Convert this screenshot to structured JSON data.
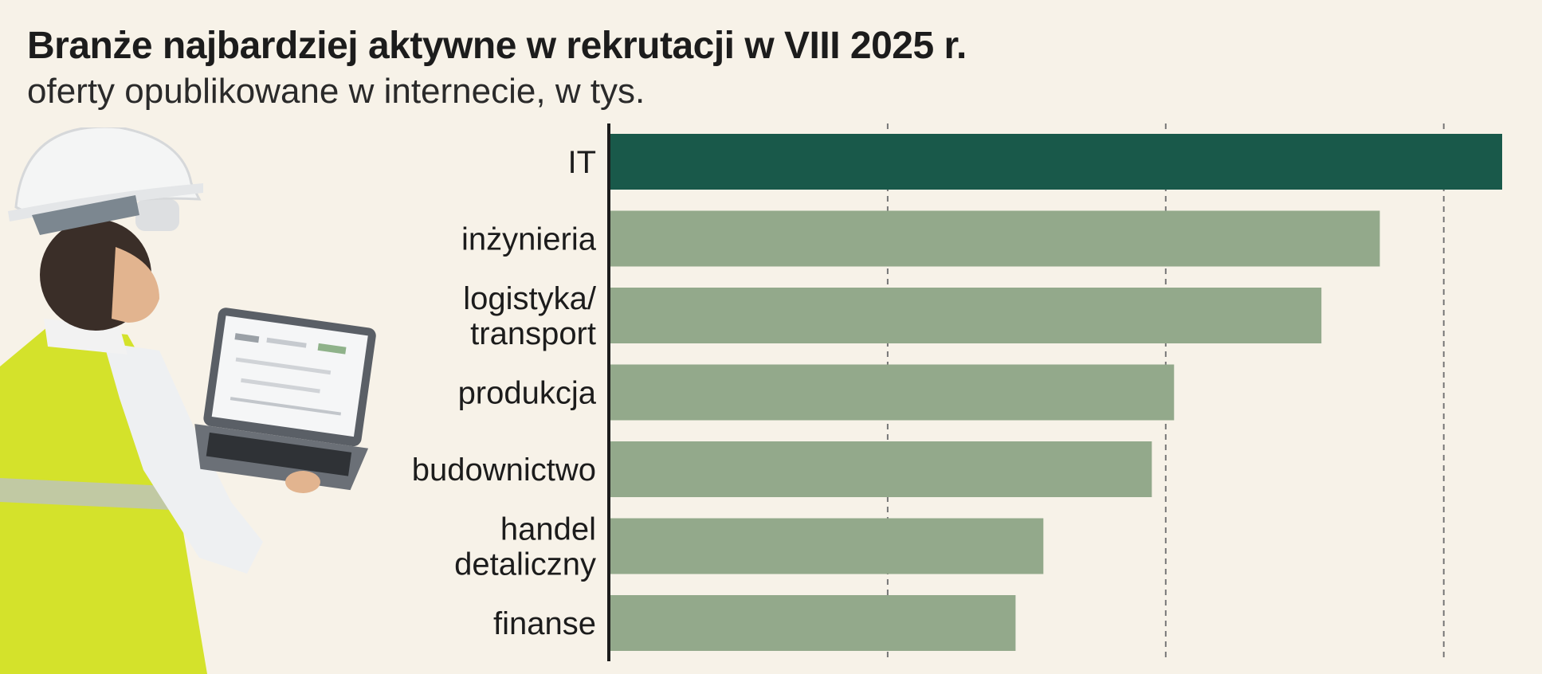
{
  "title": "Branże najbardziej aktywne w rekrutacji w VIII 2025 r.",
  "subtitle": "oferty opublikowane w internecie, w tys.",
  "colors": {
    "highlight": "#19594a",
    "bar": "#93a98b",
    "background": "#f7f2e8",
    "gridline": "#777777",
    "axis": "#1c1c1c"
  },
  "chart_data": {
    "type": "bar",
    "orientation": "horizontal",
    "categories": [
      "IT",
      "inżynieria",
      "logistyka/\ntransport",
      "produkcja",
      "budownictwo",
      "handel\ndetaliczny",
      "finanse"
    ],
    "values": [
      32.1,
      27.7,
      25.6,
      20.3,
      19.5,
      15.6,
      14.6
    ],
    "highlighted_category": "IT",
    "xlim": [
      0,
      33
    ],
    "gridlines_at": [
      10,
      20,
      30
    ],
    "grid": true,
    "tick_labels_shown": false,
    "data_labels_shown": false
  }
}
